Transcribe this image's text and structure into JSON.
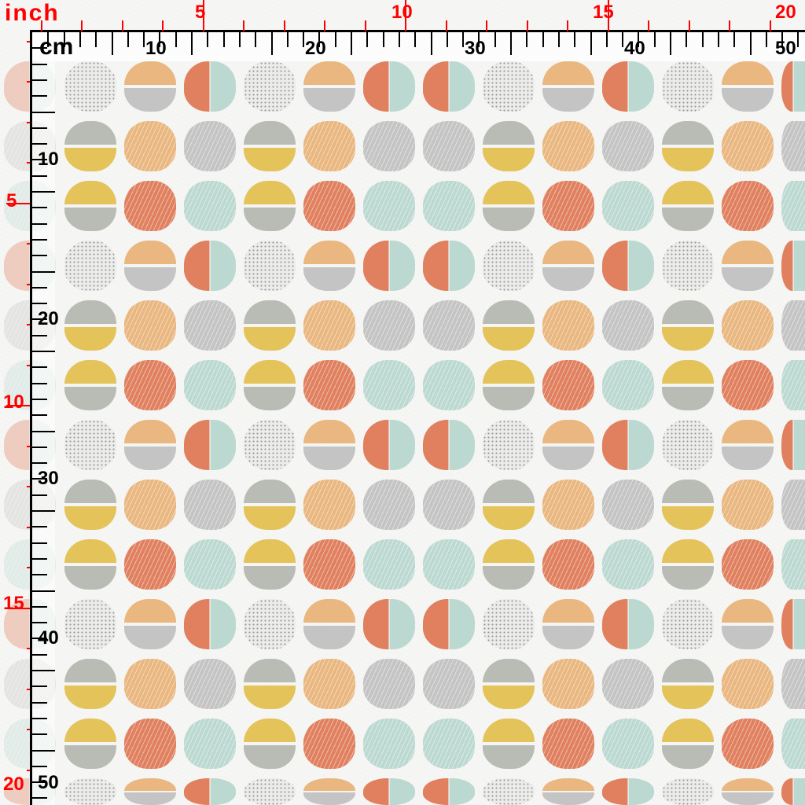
{
  "ruler": {
    "inch_unit": "inch",
    "cm_unit": "cm",
    "top_inch_labels": [
      "5",
      "10",
      "15",
      "20"
    ],
    "top_cm_labels": [
      "10",
      "20",
      "30",
      "40",
      "50"
    ],
    "left_inch_labels": [
      "5",
      "10",
      "15",
      "20"
    ],
    "left_cm_labels": [
      "10",
      "20",
      "30",
      "40",
      "50"
    ]
  },
  "colors": {
    "peach": "#e9b77f",
    "gray": "#c4c4c4",
    "sage": "#b9bcb4",
    "yellow": "#e3c35a",
    "coral": "#e0805f",
    "mint": "#bcd9d1",
    "dots": "#ececea"
  }
}
